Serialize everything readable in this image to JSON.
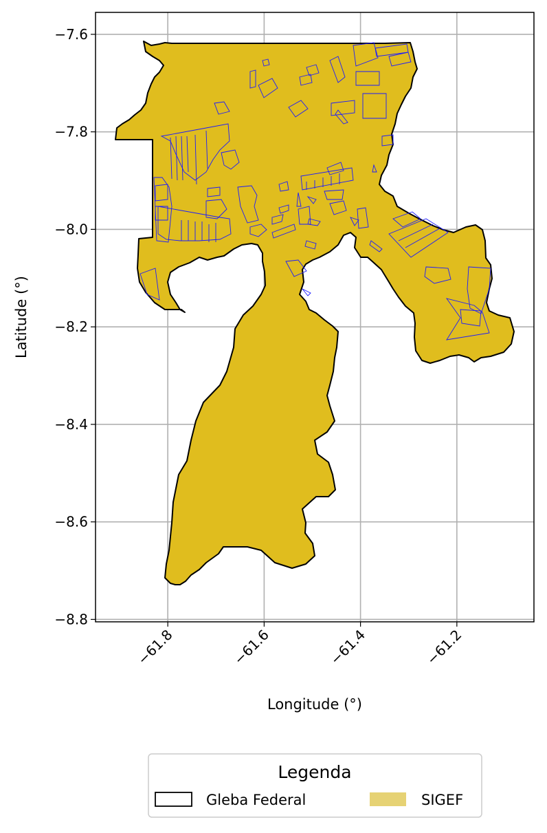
{
  "map": {
    "xlabel": "Longitude (°)",
    "ylabel": "Latitude (°)",
    "xlim": [
      -61.95,
      -61.04
    ],
    "ylim": [
      -8.805,
      -7.555
    ],
    "x_ticks": [
      {
        "value": -61.8,
        "label": "−61.8"
      },
      {
        "value": -61.6,
        "label": "−61.6"
      },
      {
        "value": -61.4,
        "label": "−61.4"
      },
      {
        "value": -61.2,
        "label": "−61.2"
      }
    ],
    "y_ticks": [
      {
        "value": -7.6,
        "label": "−7.6"
      },
      {
        "value": -7.8,
        "label": "−7.8"
      },
      {
        "value": -8.0,
        "label": "−8.0"
      },
      {
        "value": -8.2,
        "label": "−8.2"
      },
      {
        "value": -8.4,
        "label": "−8.4"
      },
      {
        "value": -8.6,
        "label": "−8.6"
      },
      {
        "value": -8.8,
        "label": "−8.8"
      }
    ],
    "grid": true,
    "tick_label_rotation_x": "45 degrees",
    "colors": {
      "gleba_fill": "#e0bd1e",
      "gleba_edge": "#000000",
      "sigef_edge": "#1a1aff",
      "legend_sigef_swatch": "#e6d274"
    }
  },
  "legend": {
    "title": "Legenda",
    "items": [
      {
        "label": "Gleba Federal",
        "style": "black outline, no fill"
      },
      {
        "label": "SIGEF",
        "style": "light gold filled patch"
      }
    ]
  }
}
